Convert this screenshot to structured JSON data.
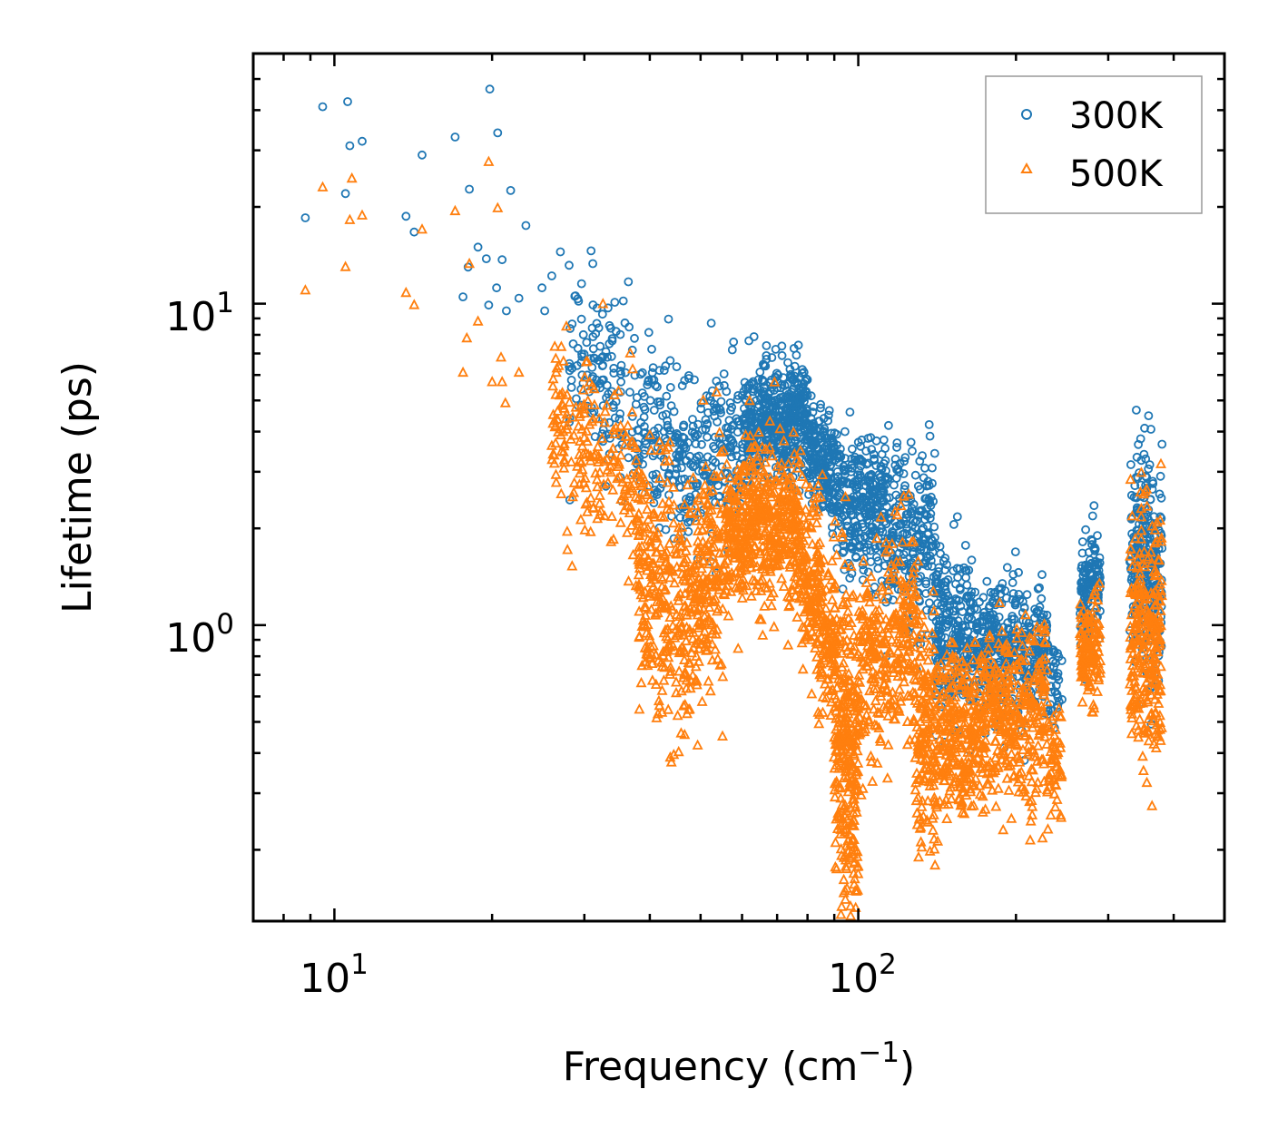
{
  "chart_data": {
    "type": "scatter",
    "title": "",
    "xlabel": "Frequency (cm",
    "xlabel_sup": "−1",
    "xlabel_close": ")",
    "ylabel": "Lifetime (ps)",
    "xscale": "log",
    "yscale": "log",
    "xlim": [
      7,
      500
    ],
    "ylim": [
      0.12,
      60
    ],
    "x_ticks": [
      {
        "base": "10",
        "exp": "1",
        "value": 10
      },
      {
        "base": "10",
        "exp": "2",
        "value": 100
      }
    ],
    "y_ticks": [
      {
        "base": "10",
        "exp": "0",
        "value": 1
      },
      {
        "base": "10",
        "exp": "1",
        "value": 10
      }
    ],
    "legend_position": "top-right",
    "series": [
      {
        "name": "300K",
        "color": "#1f77b4",
        "marker": "circle",
        "points": [
          [
            8.8,
            18.5
          ],
          [
            9.5,
            41
          ],
          [
            10.5,
            22
          ],
          [
            10.6,
            42.5
          ],
          [
            10.7,
            31
          ],
          [
            11.3,
            32
          ],
          [
            13.7,
            18.7
          ],
          [
            14.2,
            16.7
          ],
          [
            14.7,
            29
          ],
          [
            17.0,
            33
          ],
          [
            17.6,
            10.5
          ],
          [
            18.0,
            13
          ],
          [
            18.1,
            22.7
          ],
          [
            18.8,
            15
          ],
          [
            19.5,
            13.8
          ],
          [
            19.7,
            9.9
          ],
          [
            19.8,
            46.5
          ],
          [
            20.4,
            11.2
          ],
          [
            20.5,
            34
          ],
          [
            20.9,
            13.7
          ],
          [
            21.3,
            9.5
          ],
          [
            21.7,
            22.5
          ],
          [
            22.5,
            10.4
          ],
          [
            23.2,
            17.5
          ],
          [
            24.9,
            11.2
          ],
          [
            25.2,
            9.5
          ],
          [
            26.0,
            12.2
          ],
          [
            27.0,
            14.5
          ],
          [
            30.9,
            14.6
          ],
          [
            33.3,
            9.7
          ],
          [
            34.5,
            8.2
          ],
          [
            35.6,
            10.2
          ],
          [
            36.4,
            11.7
          ],
          [
            37.4,
            7.8
          ],
          [
            40.1,
            5
          ],
          [
            52.4,
            8.7
          ],
          [
            57.8,
            7.6
          ],
          [
            66.8,
            7.4
          ],
          [
            68.4,
            6.8
          ],
          [
            79.0,
            5.2
          ],
          [
            94.3,
            4
          ],
          [
            96.4,
            4.6
          ],
          [
            101,
            3.6
          ],
          [
            111,
            3.4
          ],
          [
            186,
            1.3
          ],
          [
            197,
            1.2
          ],
          [
            286,
            1.9
          ],
          [
            346,
            3.8
          ],
          [
            352,
            4.1
          ]
        ],
        "bands": [
          {
            "x": [
              28,
              45
            ],
            "center": [
              7.0,
              3.6
            ],
            "spread": 0.13,
            "n": 240
          },
          {
            "x": [
              45,
              60
            ],
            "center": [
              3.0,
              3.4
            ],
            "spread": 0.12,
            "n": 200
          },
          {
            "x": [
              60,
              80
            ],
            "center": [
              4.0,
              4.6
            ],
            "spread": 0.09,
            "n": 480
          },
          {
            "x": [
              80,
              93
            ],
            "center": [
              3.6,
              2.7
            ],
            "spread": 0.08,
            "n": 220
          },
          {
            "x": [
              93,
              112
            ],
            "center": [
              2.2,
              2.3
            ],
            "spread": 0.1,
            "n": 240
          },
          {
            "x": [
              112,
              140
            ],
            "center": [
              2.0,
              1.8
            ],
            "spread": 0.14,
            "n": 260
          },
          {
            "x": [
              140,
              165
            ],
            "center": [
              1.0,
              0.85
            ],
            "spread": 0.14,
            "n": 240
          },
          {
            "x": [
              165,
              230
            ],
            "center": [
              0.85,
              0.8
            ],
            "spread": 0.1,
            "n": 380
          },
          {
            "x": [
              230,
              245
            ],
            "center": [
              0.75,
              0.6
            ],
            "spread": 0.08,
            "n": 40
          },
          {
            "x": [
              265,
              290
            ],
            "center": [
              1.2,
              1.5
            ],
            "spread": 0.08,
            "n": 130
          },
          {
            "x": [
              330,
              380
            ],
            "center": [
              1.6,
              1.6
            ],
            "spread": 0.17,
            "n": 260
          }
        ]
      },
      {
        "name": "500K",
        "color": "#ff7f0e",
        "marker": "triangle",
        "points": [
          [
            8.8,
            11
          ],
          [
            9.5,
            23
          ],
          [
            10.5,
            13
          ],
          [
            10.7,
            18.2
          ],
          [
            10.8,
            24.5
          ],
          [
            11.3,
            18.8
          ],
          [
            13.7,
            10.8
          ],
          [
            14.2,
            9.9
          ],
          [
            14.7,
            17
          ],
          [
            17.0,
            19.4
          ],
          [
            17.6,
            6.1
          ],
          [
            17.9,
            7.8
          ],
          [
            18.1,
            13.3
          ],
          [
            18.8,
            8.8
          ],
          [
            19.7,
            27.6
          ],
          [
            20.0,
            5.7
          ],
          [
            20.5,
            19.8
          ],
          [
            20.8,
            6.8
          ],
          [
            20.9,
            5.7
          ],
          [
            21.2,
            4.9
          ],
          [
            22.5,
            6.1
          ],
          [
            27.5,
            3.2
          ],
          [
            28.5,
            2.5
          ],
          [
            32.1,
            2.2
          ],
          [
            36.7,
            7
          ],
          [
            50.6,
            5
          ],
          [
            53.6,
            5.3
          ],
          [
            63.7,
            3.6
          ],
          [
            66.5,
            3.2
          ],
          [
            67.8,
            4.3
          ],
          [
            94.5,
            2.5
          ],
          [
            113,
            1.8
          ],
          [
            180,
            0.68
          ],
          [
            282,
            0.8
          ],
          [
            282,
            0.55
          ],
          [
            347,
            2.3
          ],
          [
            372,
            0.45
          ]
        ],
        "bands": [
          {
            "x": [
              26,
              38
            ],
            "center": [
              4.2,
              2.6
            ],
            "spread": 0.14,
            "n": 200
          },
          {
            "x": [
              38,
              48
            ],
            "center": [
              1.5,
              1.0
            ],
            "spread": 0.2,
            "n": 300
          },
          {
            "x": [
              48,
              56
            ],
            "center": [
              1.1,
              1.7
            ],
            "spread": 0.18,
            "n": 200
          },
          {
            "x": [
              56,
              78
            ],
            "center": [
              2.0,
              2.0
            ],
            "spread": 0.12,
            "n": 520
          },
          {
            "x": [
              78,
              90
            ],
            "center": [
              1.5,
              0.85
            ],
            "spread": 0.15,
            "n": 230
          },
          {
            "x": [
              90,
              100
            ],
            "center": [
              0.55,
              0.28
            ],
            "spread": 0.25,
            "n": 320
          },
          {
            "x": [
              100,
              128
            ],
            "center": [
              0.75,
              0.95
            ],
            "spread": 0.16,
            "n": 300
          },
          {
            "x": [
              128,
              142
            ],
            "center": [
              0.5,
              0.45
            ],
            "spread": 0.18,
            "n": 180
          },
          {
            "x": [
              142,
              165
            ],
            "center": [
              0.45,
              0.45
            ],
            "spread": 0.13,
            "n": 220
          },
          {
            "x": [
              165,
              230
            ],
            "center": [
              0.5,
              0.52
            ],
            "spread": 0.13,
            "n": 420
          },
          {
            "x": [
              230,
              245
            ],
            "center": [
              0.42,
              0.34
            ],
            "spread": 0.1,
            "n": 50
          },
          {
            "x": [
              265,
              290
            ],
            "center": [
              0.82,
              0.85
            ],
            "spread": 0.08,
            "n": 130
          },
          {
            "x": [
              330,
              380
            ],
            "center": [
              0.95,
              0.95
            ],
            "spread": 0.2,
            "n": 280
          }
        ]
      }
    ]
  }
}
